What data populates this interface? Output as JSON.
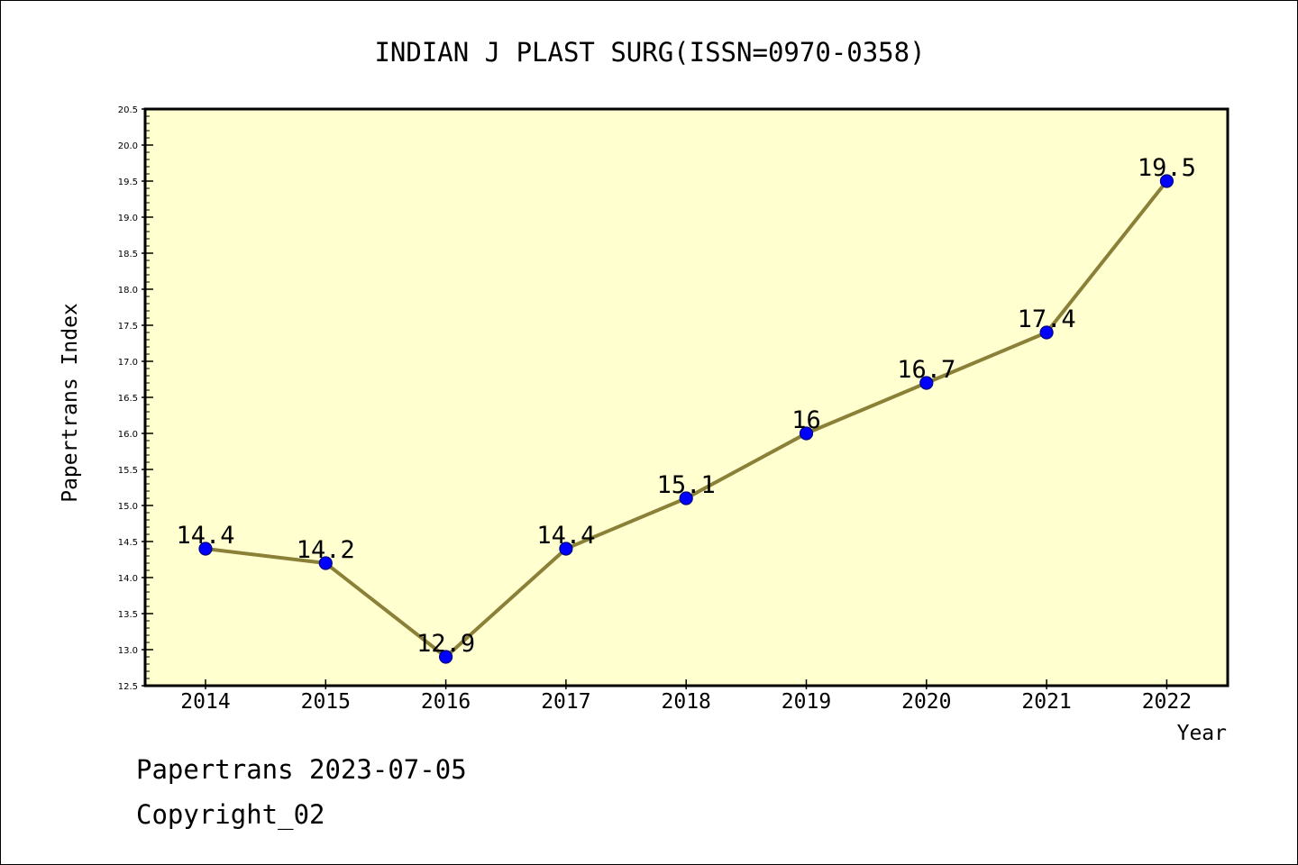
{
  "chart_data": {
    "type": "line",
    "title": "INDIAN J PLAST SURG(ISSN=0970-0358)",
    "xlabel": "Year",
    "ylabel": "Papertrans Index",
    "x": [
      "2014",
      "2015",
      "2016",
      "2017",
      "2018",
      "2019",
      "2020",
      "2021",
      "2022"
    ],
    "series": [
      {
        "values": [
          14.4,
          14.2,
          12.9,
          14.4,
          15.1,
          16,
          16.7,
          17.4,
          19.5
        ],
        "labels": [
          "14.4",
          "14.2",
          "12.9",
          "14.4",
          "15.1",
          "16",
          "16.7",
          "17.4",
          "19.5"
        ]
      }
    ],
    "ylim": [
      12.5,
      20.5
    ],
    "yticks": [
      "12.5",
      "13.0",
      "13.5",
      "14.0",
      "14.5",
      "15.0",
      "15.5",
      "16.0",
      "16.5",
      "17.0",
      "17.5",
      "18.0",
      "18.5",
      "19.0",
      "19.5",
      "20.0",
      "20.5"
    ],
    "grid": false,
    "colors": {
      "plot_background": "#ffffd0",
      "line": "#8b8038",
      "marker_fill": "#0000ff",
      "marker_stroke": "#000080"
    }
  },
  "footer": {
    "date_text": "Papertrans 2023-07-05",
    "copyright_text": "Copyright_02"
  }
}
